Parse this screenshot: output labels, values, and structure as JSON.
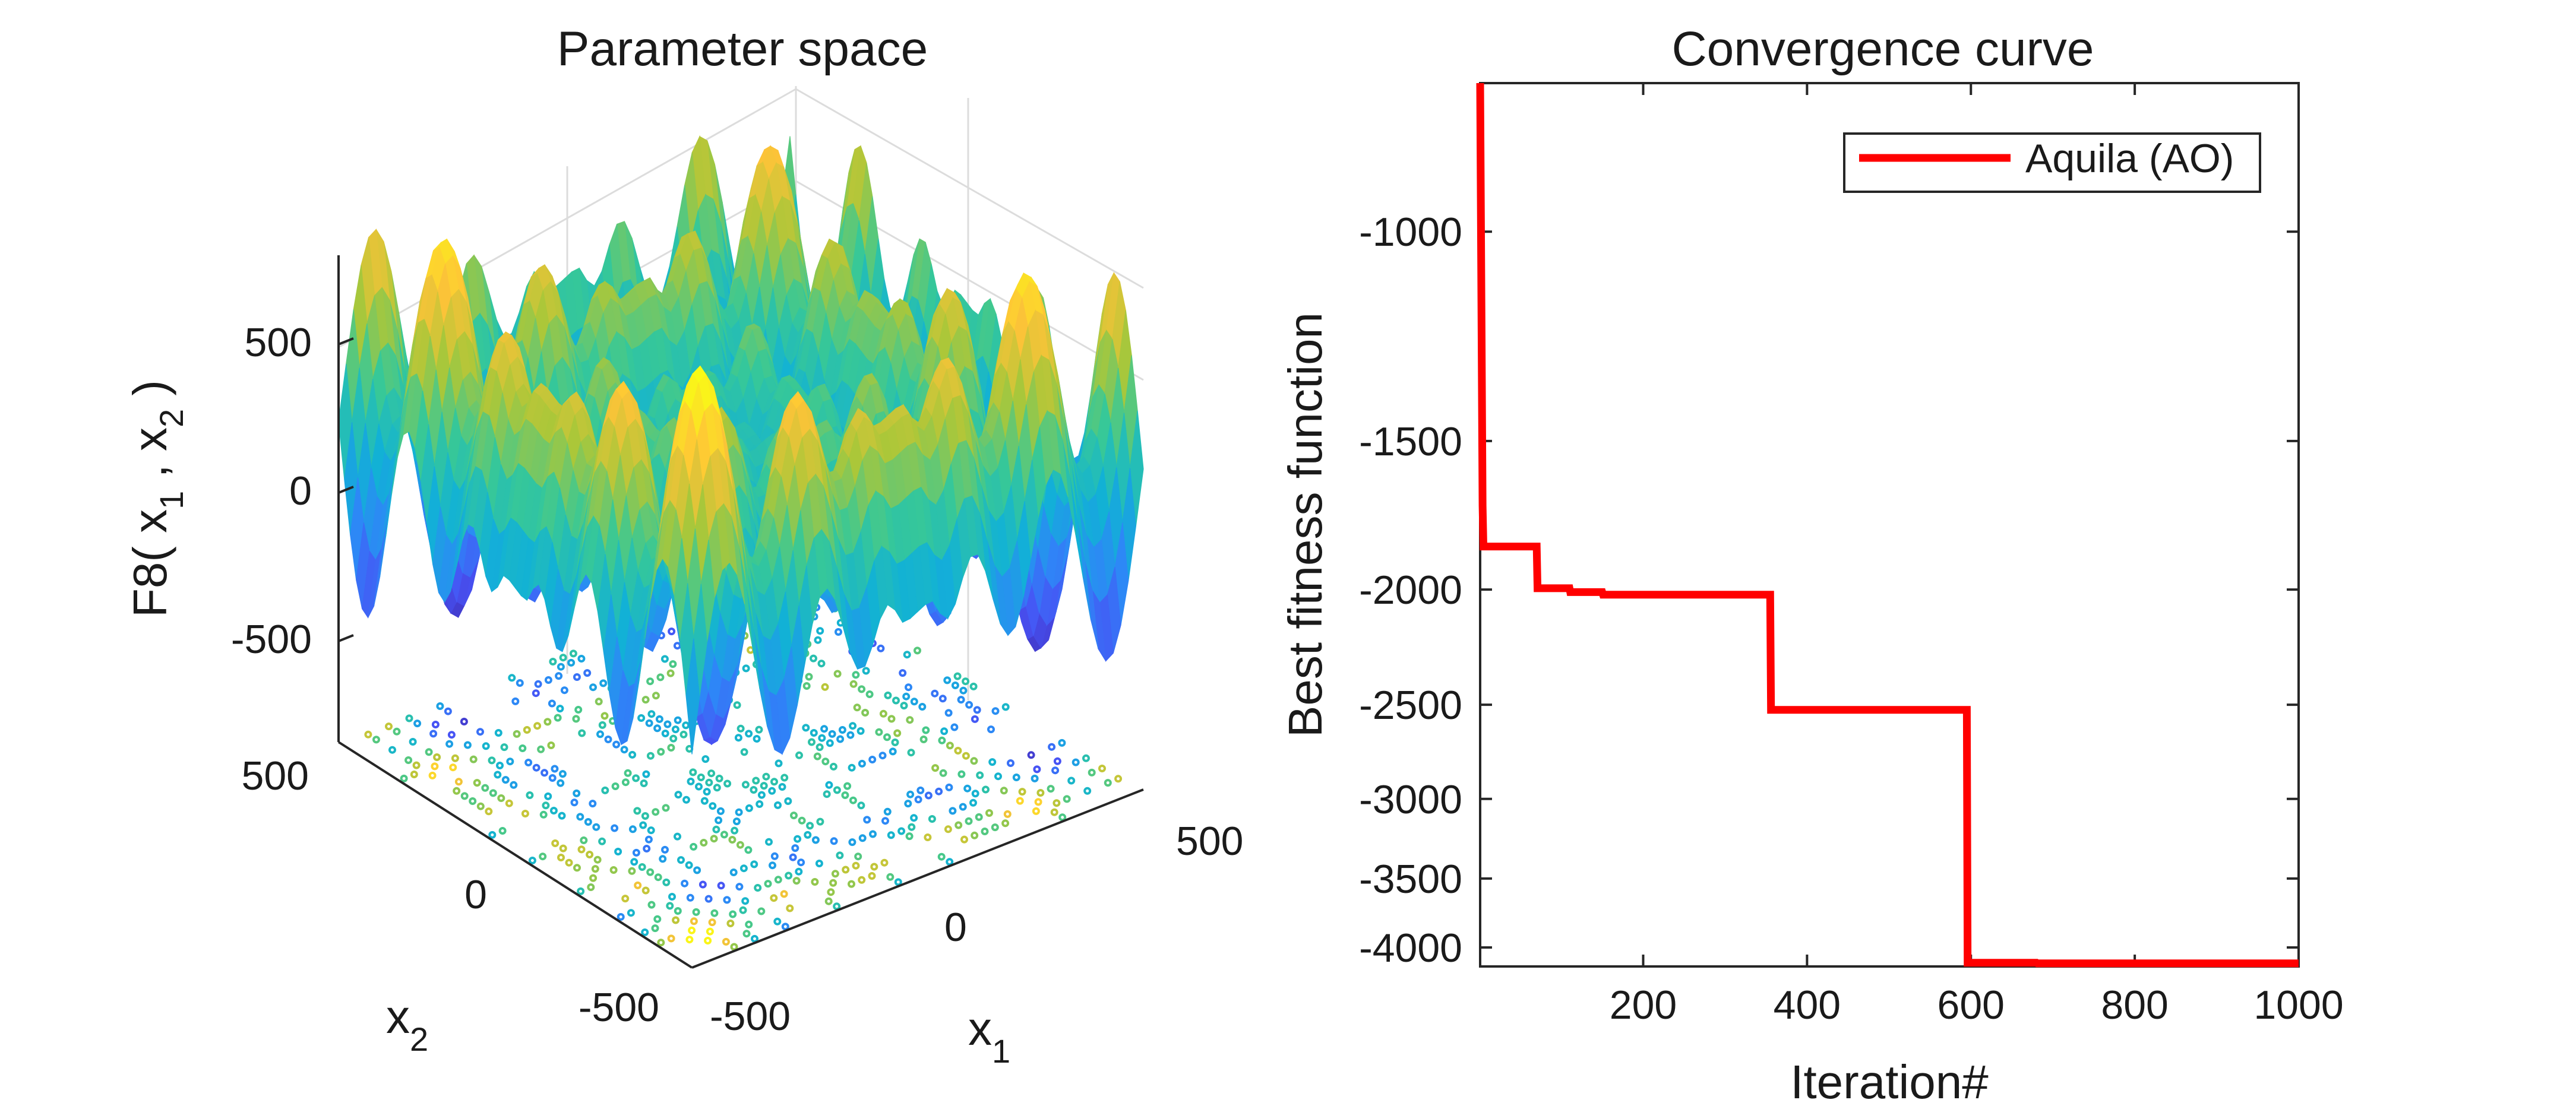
{
  "figure": {
    "left_title": "Parameter space",
    "right_title": "Convergence curve"
  },
  "chart_data": [
    {
      "type": "surface",
      "title": "Parameter space",
      "xlabel": "x",
      "xlabel_sub": "1",
      "ylabel": "x",
      "ylabel_sub": "2",
      "zlabel_parts": [
        "F8( x",
        "1",
        " , x",
        "2",
        " )"
      ],
      "x_ticks": [
        "-500",
        "0",
        "500"
      ],
      "y_ticks": [
        "-500",
        "0",
        "500"
      ],
      "z_ticks": [
        "-500",
        "0",
        "500"
      ],
      "xlim": [
        -500,
        500
      ],
      "ylim": [
        -500,
        500
      ],
      "zlim": [
        -800,
        800
      ],
      "function": "-x1*sin(sqrt(|x1|)) - x2*sin(sqrt(|x2|))",
      "colormap": "parula",
      "contour_projection": true,
      "grid": true
    },
    {
      "type": "line",
      "title": "Convergence curve",
      "xlabel": "Iteration#",
      "ylabel": "Best fitness function",
      "x_ticks": [
        "200",
        "400",
        "600",
        "800",
        "1000"
      ],
      "y_ticks": [
        "-1000",
        "-1500",
        "-2000",
        "-2500",
        "-3000",
        "-3500",
        "-4000"
      ],
      "xlim": [
        1,
        1000
      ],
      "ylim": [
        -4150,
        -750
      ],
      "y_scale": "symlog",
      "legend_placement": "top-right",
      "series": [
        {
          "name": "Aquila (AO)",
          "color": "#ff0000",
          "x": [
            1,
            4,
            5,
            70,
            71,
            110,
            111,
            150,
            151,
            355,
            356,
            595,
            596,
            680,
            681,
            1000
          ],
          "y": [
            -750,
            -1700,
            -1840,
            -1840,
            -1995,
            -1995,
            -2010,
            -2010,
            -2020,
            -2020,
            -2525,
            -2525,
            -4120,
            -4120,
            -4125,
            -4125
          ]
        }
      ]
    }
  ]
}
